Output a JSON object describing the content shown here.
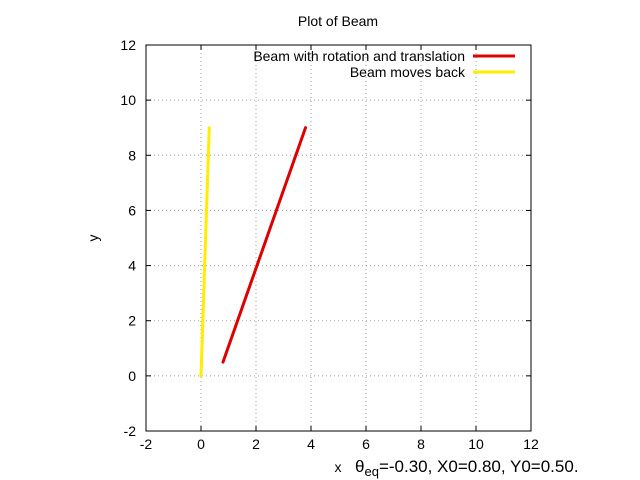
{
  "chart_data": {
    "type": "line",
    "title": "Plot of Beam",
    "xlabel": "x",
    "ylabel": "y",
    "xlim": [
      -2,
      12
    ],
    "ylim": [
      -2,
      12
    ],
    "x_ticks": [
      -2,
      0,
      2,
      4,
      6,
      8,
      10,
      12
    ],
    "y_ticks": [
      -2,
      0,
      2,
      4,
      6,
      8,
      10,
      12
    ],
    "grid": true,
    "legend_position": "top-right",
    "series": [
      {
        "name": "Beam with rotation and translation",
        "color": "#dd0000",
        "x": [
          0.8,
          3.8
        ],
        "y": [
          0.5,
          9.0
        ]
      },
      {
        "name": "Beam moves back",
        "color": "#ffee00",
        "x": [
          0.0,
          0.3
        ],
        "y": [
          0.0,
          9.0
        ]
      }
    ],
    "annotation": {
      "symbol": "θ",
      "subscript": "eq",
      "text": "=-0.30, X0=0.80, Y0=0.50."
    }
  }
}
